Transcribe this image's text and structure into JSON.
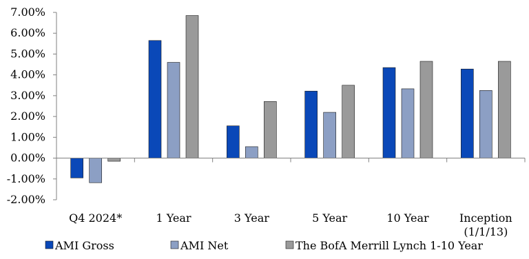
{
  "chart_data": {
    "type": "bar",
    "categories": [
      "Q4 2024*",
      "1 Year",
      "3 Year",
      "5 Year",
      "10 Year",
      "Inception (1/1/13)"
    ],
    "series": [
      {
        "name": "AMI Gross",
        "color": "#0A48B8",
        "values": [
          -0.95,
          5.65,
          1.55,
          3.22,
          4.35,
          4.28
        ]
      },
      {
        "name": "AMI Net",
        "color": "#8C9FC4",
        "values": [
          -1.18,
          4.6,
          0.55,
          2.2,
          3.33,
          3.25
        ]
      },
      {
        "name": "The BofA Merrill Lynch 1-10 Year",
        "color": "#9A9A9A",
        "values": [
          -0.15,
          6.85,
          2.72,
          3.5,
          4.65,
          4.65
        ]
      }
    ],
    "yticks": [
      "7.00%",
      "6.00%",
      "5.00%",
      "4.00%",
      "3.00%",
      "2.00%",
      "1.00%",
      "0.00%",
      "-1.00%",
      "-2.00%"
    ],
    "ylim": [
      -2,
      7
    ],
    "grid": false,
    "legend": "bottom",
    "title": "",
    "xlabel": "",
    "ylabel": ""
  }
}
